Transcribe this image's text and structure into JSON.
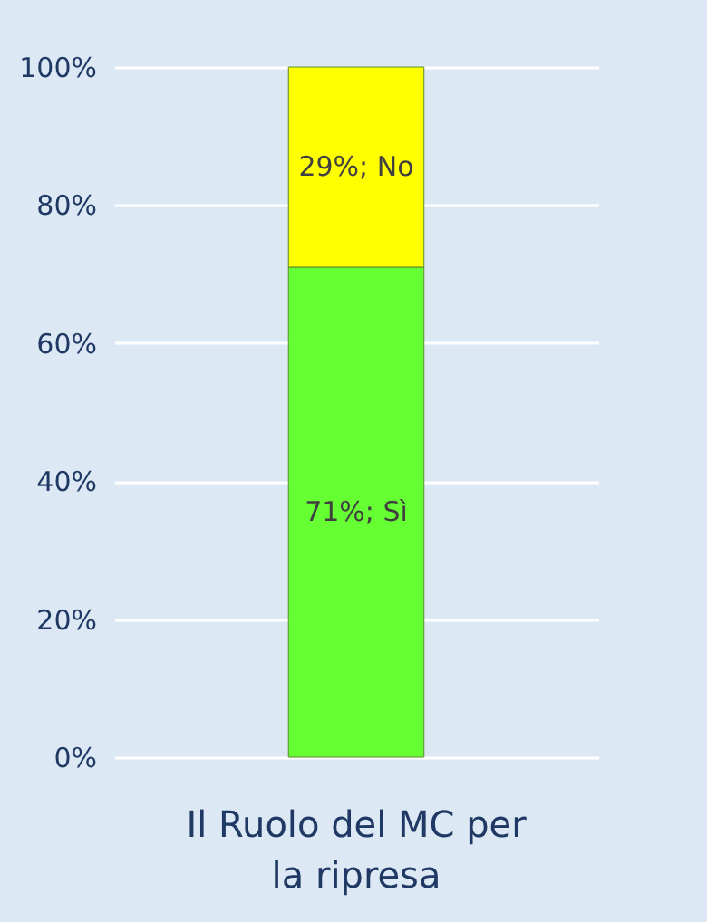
{
  "chart_data": {
    "type": "bar",
    "title": "Il Ruolo del MC per la ripresa",
    "categories": [
      null
    ],
    "stacked": true,
    "series": [
      {
        "name": "Sì",
        "color": "#66ff33",
        "values": [
          71
        ],
        "value_labels": [
          "71%;"
        ]
      },
      {
        "name": "No",
        "color": "#ffff00",
        "values": [
          29
        ],
        "value_labels": [
          "29%;"
        ]
      }
    ],
    "ylim": [
      0,
      100
    ],
    "yticks": [
      {
        "value": 0,
        "label": "0%"
      },
      {
        "value": 20,
        "label": "20%"
      },
      {
        "value": 40,
        "label": "40%"
      },
      {
        "value": 60,
        "label": "60%"
      },
      {
        "value": 80,
        "label": "80%"
      },
      {
        "value": 100,
        "label": "100%"
      }
    ],
    "grid": "y",
    "legend": false,
    "tick_labels": "y"
  }
}
